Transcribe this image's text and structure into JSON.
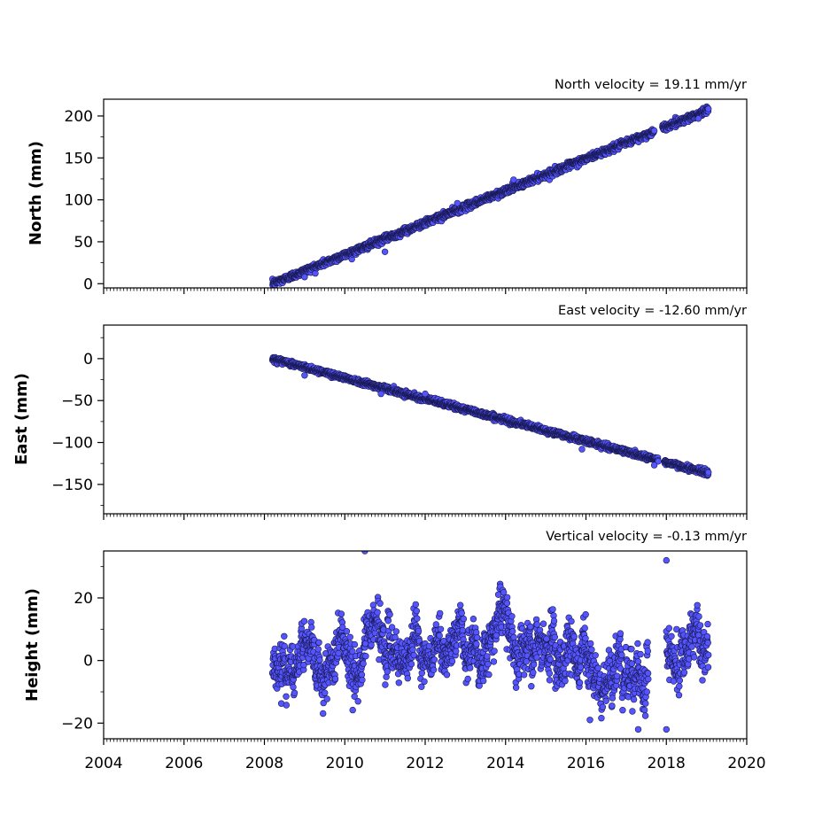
{
  "colors": {
    "marker_fill": "#5555ff",
    "marker_edge": "#1a1a55",
    "axes": "#000000",
    "background": "#ffffff"
  },
  "chart_data": [
    {
      "type": "scatter",
      "title": "North velocity = 19.11 mm/yr",
      "xlabel": "",
      "ylabel": "North (mm)",
      "xlim": [
        2004,
        2020
      ],
      "ylim": [
        -5,
        220
      ],
      "xticks": [
        2004,
        2006,
        2008,
        2010,
        2012,
        2014,
        2016,
        2018,
        2020
      ],
      "x_tick_labels_visible": false,
      "yticks": [
        0,
        50,
        100,
        150,
        200
      ],
      "ytick_labels": [
        "0",
        "50",
        "100",
        "150",
        "200"
      ],
      "grid": false,
      "trend": {
        "start_year": 2008.2,
        "end_year": 2019.05,
        "start_value": 0,
        "slope_per_year": 19.11
      },
      "noise": 2.0,
      "gaps": [
        [
          2017.7,
          2017.9
        ]
      ],
      "outliers": [
        {
          "x": 2009.0,
          "y": 8
        },
        {
          "x": 2011.0,
          "y": 38
        },
        {
          "x": 2012.8,
          "y": 96
        },
        {
          "x": 2014.2,
          "y": 124
        },
        {
          "x": 2018.8,
          "y": 197
        }
      ]
    },
    {
      "type": "scatter",
      "title": "East velocity = -12.60 mm/yr",
      "xlabel": "",
      "ylabel": "East (mm)",
      "xlim": [
        2004,
        2020
      ],
      "ylim": [
        -185,
        40
      ],
      "xticks": [
        2004,
        2006,
        2008,
        2010,
        2012,
        2014,
        2016,
        2018,
        2020
      ],
      "x_tick_labels_visible": false,
      "yticks": [
        0,
        -50,
        -100,
        -150
      ],
      "ytick_labels": [
        "0",
        "−50",
        "−100",
        "−150"
      ],
      "grid": false,
      "trend": {
        "start_year": 2008.2,
        "end_year": 2019.05,
        "start_value": 0,
        "slope_per_year": -12.6
      },
      "noise": 1.6,
      "gaps": [
        [
          2017.8,
          2017.95
        ]
      ],
      "outliers": [
        {
          "x": 2009.0,
          "y": -20
        },
        {
          "x": 2010.9,
          "y": -42
        },
        {
          "x": 2012.0,
          "y": -42
        },
        {
          "x": 2015.9,
          "y": -108
        },
        {
          "x": 2017.7,
          "y": -127
        }
      ]
    },
    {
      "type": "scatter",
      "title": "Vertical velocity = -0.13 mm/yr",
      "xlabel": "",
      "ylabel": "Height (mm)",
      "xlim": [
        2004,
        2020
      ],
      "ylim": [
        -25,
        35
      ],
      "xticks": [
        2004,
        2006,
        2008,
        2010,
        2012,
        2014,
        2016,
        2018,
        2020
      ],
      "xtick_labels": [
        "2004",
        "2006",
        "2008",
        "2010",
        "2012",
        "2014",
        "2016",
        "2018",
        "2020"
      ],
      "x_tick_labels_visible": true,
      "yticks": [
        20,
        0,
        -20
      ],
      "ytick_labels": [
        "20",
        "0",
        "−20"
      ],
      "grid": false,
      "trend": {
        "start_year": 2008.2,
        "end_year": 2019.05,
        "start_value": 3,
        "slope_per_year": -0.13
      },
      "noise": 6.0,
      "gaps": [
        [
          2017.55,
          2018.0
        ]
      ],
      "outliers": [
        {
          "x": 2010.5,
          "y": 35
        },
        {
          "x": 2018.0,
          "y": 32
        },
        {
          "x": 2018.0,
          "y": -22
        },
        {
          "x": 2017.3,
          "y": -22
        },
        {
          "x": 2016.1,
          "y": -19
        }
      ]
    }
  ]
}
